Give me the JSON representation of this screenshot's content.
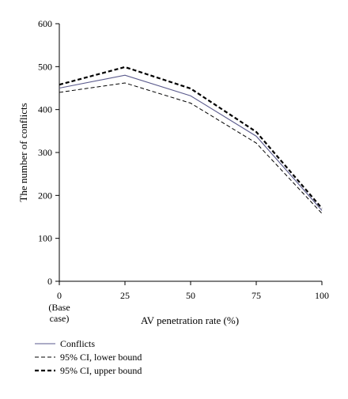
{
  "chart_data": {
    "type": "line",
    "title": "",
    "xlabel": "AV penetration rate (%)",
    "ylabel": "The number of conflicts",
    "x": [
      0,
      25,
      50,
      75,
      100
    ],
    "x_tick_labels": [
      "0",
      "25",
      "50",
      "75",
      "100"
    ],
    "x_tick_sublabel": [
      "(Base",
      "case)"
    ],
    "y_ticks": [
      0,
      100,
      200,
      300,
      400,
      500,
      600
    ],
    "xlim": [
      0,
      100
    ],
    "ylim": [
      0,
      600
    ],
    "grid": false,
    "legend_position": "bottom-left",
    "series": [
      {
        "name": "Conflicts",
        "values": [
          450,
          480,
          432,
          338,
          165
        ],
        "color": "#5a5a8c",
        "style": "solid"
      },
      {
        "name": "95% CI, lower bound",
        "values": [
          440,
          462,
          415,
          322,
          158
        ],
        "color": "#000000",
        "style": "dashed-thin"
      },
      {
        "name": "95% CI, upper bound",
        "values": [
          458,
          499,
          449,
          348,
          170
        ],
        "color": "#000000",
        "style": "dashed-thick"
      }
    ]
  }
}
